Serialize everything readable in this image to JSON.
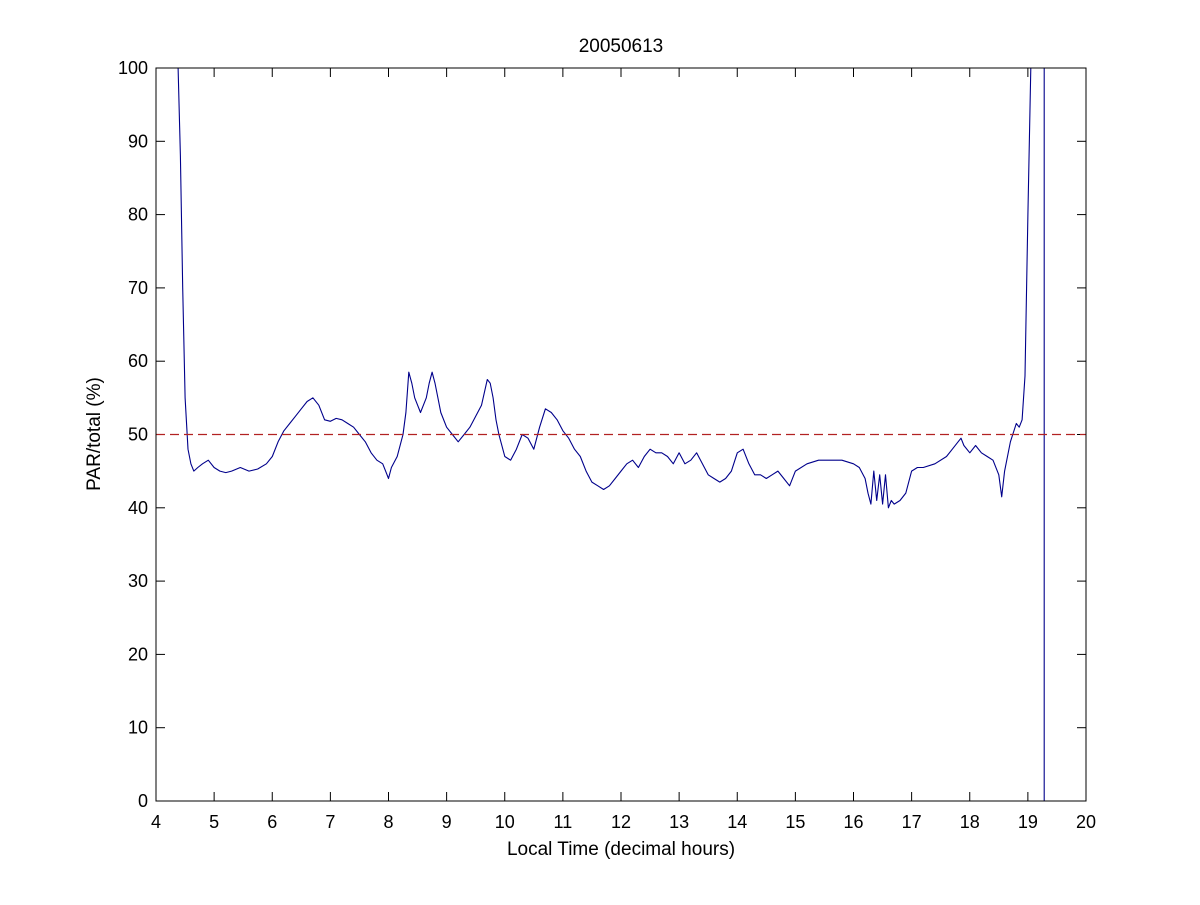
{
  "chart_data": {
    "type": "line",
    "title": "20050613",
    "xlabel": "Local Time (decimal hours)",
    "ylabel": "PAR/total (%)",
    "xlim": [
      4,
      20
    ],
    "ylim": [
      0,
      100
    ],
    "xticks": [
      4,
      5,
      6,
      7,
      8,
      9,
      10,
      11,
      12,
      13,
      14,
      15,
      16,
      17,
      18,
      19,
      20
    ],
    "yticks": [
      0,
      10,
      20,
      30,
      40,
      50,
      60,
      70,
      80,
      90,
      100
    ],
    "xtick_labels": [
      "4",
      "5",
      "6",
      "7",
      "8",
      "9",
      "10",
      "11",
      "12",
      "13",
      "14",
      "15",
      "16",
      "17",
      "18",
      "19",
      "20"
    ],
    "ytick_labels": [
      "0",
      "10",
      "20",
      "30",
      "40",
      "50",
      "60",
      "70",
      "80",
      "90",
      "100"
    ],
    "grid": false,
    "reference_line": {
      "y": 50,
      "color": "#b22222",
      "style": "dashed"
    },
    "series": [
      {
        "color": "#00008b",
        "x": [
          4.38,
          4.42,
          4.46,
          4.5,
          4.55,
          4.6,
          4.65,
          4.72,
          4.8,
          4.9,
          5.0,
          5.1,
          5.2,
          5.3,
          5.45,
          5.6,
          5.75,
          5.9,
          6.0,
          6.1,
          6.2,
          6.3,
          6.4,
          6.5,
          6.6,
          6.7,
          6.8,
          6.9,
          7.0,
          7.1,
          7.2,
          7.3,
          7.4,
          7.5,
          7.6,
          7.7,
          7.8,
          7.9,
          7.95,
          8.0,
          8.05,
          8.15,
          8.25,
          8.3,
          8.35,
          8.4,
          8.45,
          8.5,
          8.55,
          8.6,
          8.65,
          8.7,
          8.75,
          8.8,
          8.85,
          8.9,
          9.0,
          9.1,
          9.2,
          9.3,
          9.4,
          9.5,
          9.6,
          9.7,
          9.75,
          9.8,
          9.85,
          9.9,
          10.0,
          10.1,
          10.2,
          10.3,
          10.4,
          10.5,
          10.6,
          10.7,
          10.8,
          10.9,
          11.0,
          11.1,
          11.2,
          11.3,
          11.4,
          11.5,
          11.6,
          11.7,
          11.8,
          11.9,
          12.0,
          12.1,
          12.2,
          12.3,
          12.4,
          12.5,
          12.6,
          12.7,
          12.8,
          12.9,
          13.0,
          13.1,
          13.2,
          13.3,
          13.4,
          13.5,
          13.6,
          13.7,
          13.8,
          13.9,
          14.0,
          14.1,
          14.2,
          14.3,
          14.4,
          14.5,
          14.6,
          14.7,
          14.8,
          14.9,
          15.0,
          15.2,
          15.4,
          15.6,
          15.8,
          16.0,
          16.1,
          16.2,
          16.25,
          16.3,
          16.35,
          16.4,
          16.45,
          16.5,
          16.55,
          16.6,
          16.65,
          16.7,
          16.8,
          16.9,
          17.0,
          17.1,
          17.2,
          17.4,
          17.6,
          17.7,
          17.8,
          17.85,
          17.9,
          18.0,
          18.1,
          18.2,
          18.3,
          18.4,
          18.5,
          18.55,
          18.6,
          18.7,
          18.8,
          18.85,
          18.9,
          18.95,
          19.0,
          19.05
        ],
        "values": [
          100,
          88,
          70,
          55,
          48,
          46,
          45,
          45.5,
          46,
          46.5,
          45.5,
          45,
          44.8,
          45,
          45.5,
          45,
          45.3,
          46,
          47,
          49,
          50.5,
          51.5,
          52.5,
          53.5,
          54.5,
          55,
          54,
          52,
          51.8,
          52.2,
          52,
          51.5,
          51,
          50,
          49,
          47.5,
          46.5,
          46,
          45,
          44,
          45.5,
          47,
          50,
          53,
          58.5,
          57,
          55,
          54,
          53,
          54,
          55,
          57,
          58.5,
          57,
          55,
          53,
          51,
          50,
          49,
          50,
          51,
          52.5,
          54,
          57.5,
          57,
          55,
          52,
          50,
          47,
          46.5,
          48,
          50,
          49.5,
          48,
          51,
          53.5,
          53,
          52,
          50.5,
          49.5,
          48,
          47,
          45,
          43.5,
          43,
          42.5,
          43,
          44,
          45,
          46,
          46.5,
          45.5,
          47,
          48,
          47.5,
          47.5,
          47,
          46,
          47.5,
          46,
          46.5,
          47.5,
          46,
          44.5,
          44,
          43.5,
          44,
          45,
          47.5,
          48,
          46,
          44.5,
          44.5,
          44,
          44.5,
          45,
          44,
          43,
          45,
          46,
          46.5,
          46.5,
          46.5,
          46,
          45.5,
          44,
          42,
          40.5,
          45,
          41,
          44.5,
          40.5,
          44.5,
          40,
          41,
          40.5,
          41,
          42,
          45,
          45.5,
          45.5,
          46,
          47,
          48,
          49,
          49.5,
          48.5,
          47.5,
          48.5,
          47.5,
          47,
          46.5,
          44.5,
          41.5,
          45,
          49,
          51.5,
          51,
          52,
          58,
          80,
          100
        ]
      },
      {
        "color": "#00008b",
        "x": [
          19.28,
          19.28
        ],
        "values": [
          100,
          0
        ]
      }
    ]
  }
}
